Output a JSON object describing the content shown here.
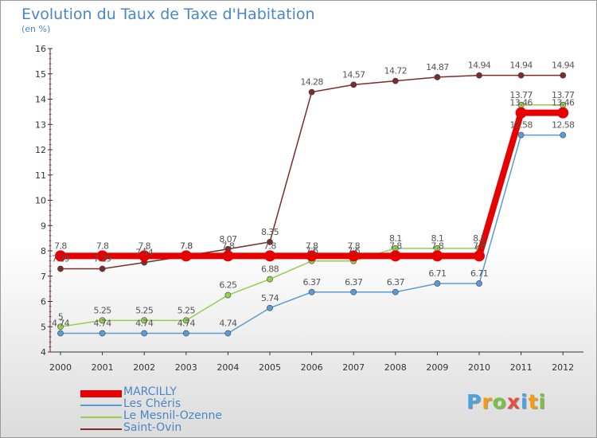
{
  "header": {
    "title": "Evolution du Taux de Taxe d'Habitation",
    "unit": "(en %)"
  },
  "chart_data": {
    "type": "line",
    "title": "Evolution du Taux de Taxe d'Habitation",
    "ylabel": "(en %)",
    "xlabel": "",
    "x": [
      "2000",
      "2001",
      "2002",
      "2003",
      "2004",
      "2005",
      "2006",
      "2007",
      "2008",
      "2009",
      "2010",
      "2011",
      "2012"
    ],
    "ylim": [
      4,
      16
    ],
    "yticks": [
      4,
      5,
      6,
      7,
      8,
      9,
      10,
      11,
      12,
      13,
      14,
      15,
      16
    ],
    "grid": false,
    "legend": "bottom-left",
    "series": [
      {
        "name": "MARCILLY",
        "color": "#e60000",
        "values": [
          7.8,
          7.8,
          7.8,
          7.8,
          7.8,
          7.8,
          7.8,
          7.8,
          7.8,
          7.8,
          7.8,
          13.46,
          13.46
        ],
        "labels": [
          "7.8",
          "7.8",
          "7.8",
          "7.8",
          "7.8",
          "7.8",
          "7.8",
          "7.8",
          "7.8",
          "7.8",
          "7.8",
          "13.46",
          "13.46"
        ]
      },
      {
        "name": "Les Chéris",
        "color": "#5b9bd5",
        "values": [
          4.74,
          4.74,
          4.74,
          4.74,
          4.74,
          5.74,
          6.37,
          6.37,
          6.37,
          6.71,
          6.71,
          12.58,
          12.58
        ],
        "labels": [
          "4.74",
          "4.74",
          "4.74",
          "4.74",
          "4.74",
          "5.74",
          "6.37",
          "6.37",
          "6.37",
          "6.71",
          "6.71",
          "12.58",
          "12.58"
        ]
      },
      {
        "name": "Le Mesnil-Ozenne",
        "color": "#92d050",
        "values": [
          5,
          5.25,
          5.25,
          5.25,
          6.25,
          6.88,
          7.6,
          7.6,
          8.1,
          8.1,
          8.1,
          13.77,
          13.77
        ],
        "labels": [
          "5",
          "5.25",
          "5.25",
          "5.25",
          "6.25",
          "6.88",
          "7.6",
          "7.6",
          "8.1",
          "8.1",
          "8.1",
          "13.77",
          "13.77"
        ]
      },
      {
        "name": "Saint-Ovin",
        "color": "#7b2c2c",
        "values": [
          7.29,
          7.29,
          7.54,
          7.8,
          8.07,
          8.35,
          14.28,
          14.57,
          14.72,
          14.87,
          14.94,
          14.94,
          14.94
        ],
        "labels": [
          "7.29",
          "7.29",
          "7.54",
          "7.8",
          "8.07",
          "8.35",
          "14.28",
          "14.57",
          "14.72",
          "14.87",
          "14.94",
          "14.94",
          "14.94"
        ]
      }
    ]
  },
  "legend": {
    "items": [
      "MARCILLY",
      "Les Chéris",
      "Le Mesnil-Ozenne",
      "Saint-Ovin"
    ]
  },
  "logo": {
    "text": "Proxiti",
    "letters": [
      "P",
      "r",
      "o",
      "x",
      "i",
      "t",
      "i"
    ]
  }
}
